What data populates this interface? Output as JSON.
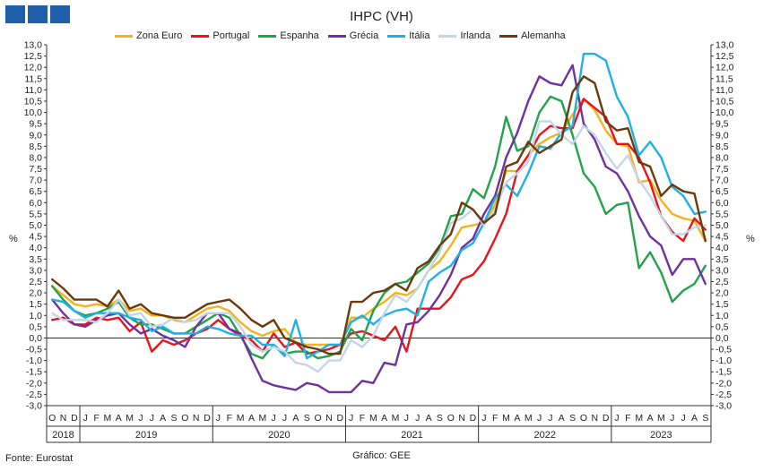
{
  "logo": {
    "color": "#1f5ea8",
    "blocks": 3
  },
  "footer": {
    "source": "Fonte: Eurostat",
    "credit": "Gráfico: GEE"
  },
  "chart_data": {
    "type": "line",
    "title": "IHPC (VH)",
    "ylabel_left": "%",
    "ylabel_right": "%",
    "ylim": [
      -3.0,
      13.0
    ],
    "ytick_step": 0.5,
    "grid": false,
    "legend_position": "top",
    "months": [
      "O",
      "N",
      "D",
      "J",
      "F",
      "M",
      "A",
      "M",
      "J",
      "J",
      "A",
      "S",
      "O",
      "N",
      "D",
      "J",
      "F",
      "M",
      "A",
      "M",
      "J",
      "J",
      "A",
      "S",
      "O",
      "N",
      "D",
      "J",
      "F",
      "M",
      "A",
      "M",
      "J",
      "J",
      "A",
      "S",
      "O",
      "N",
      "D",
      "J",
      "F",
      "M",
      "A",
      "M",
      "J",
      "J",
      "A",
      "S",
      "O",
      "N",
      "D",
      "J",
      "F",
      "M",
      "A",
      "M",
      "J",
      "J",
      "A",
      "S"
    ],
    "years": [
      {
        "label": "2018",
        "start": 0,
        "end": 2
      },
      {
        "label": "2019",
        "start": 3,
        "end": 14
      },
      {
        "label": "2020",
        "start": 15,
        "end": 26
      },
      {
        "label": "2021",
        "start": 27,
        "end": 38
      },
      {
        "label": "2022",
        "start": 39,
        "end": 50
      },
      {
        "label": "2023",
        "start": 51,
        "end": 59
      }
    ],
    "series": [
      {
        "name": "Zona Euro",
        "color": "#f2b31e",
        "values": [
          2.3,
          1.9,
          1.5,
          1.4,
          1.5,
          1.4,
          1.7,
          1.2,
          1.3,
          1.0,
          1.0,
          0.8,
          0.7,
          1.0,
          1.3,
          1.4,
          1.2,
          0.7,
          0.3,
          0.1,
          0.3,
          0.4,
          -0.2,
          -0.3,
          -0.3,
          -0.3,
          -0.3,
          0.9,
          0.9,
          1.3,
          1.6,
          2.0,
          1.9,
          2.2,
          3.0,
          3.4,
          4.1,
          4.9,
          5.0,
          5.1,
          5.9,
          7.4,
          7.4,
          8.1,
          8.6,
          8.9,
          9.1,
          9.9,
          10.6,
          10.1,
          9.2,
          8.6,
          8.5,
          6.9,
          7.0,
          6.1,
          5.5,
          5.3,
          5.2,
          4.3
        ]
      },
      {
        "name": "Portugal",
        "color": "#e8141b",
        "values": [
          0.8,
          0.9,
          0.6,
          0.6,
          0.9,
          0.8,
          0.9,
          0.3,
          0.7,
          -0.6,
          -0.1,
          -0.3,
          -0.1,
          0.2,
          0.4,
          0.8,
          0.4,
          0.1,
          -0.1,
          -0.6,
          0.2,
          -0.4,
          -0.2,
          -0.7,
          -0.6,
          -0.5,
          -0.3,
          0.2,
          0.3,
          0.1,
          -0.1,
          0.5,
          -0.6,
          1.3,
          1.3,
          1.3,
          1.8,
          2.6,
          2.8,
          3.4,
          4.4,
          5.5,
          7.4,
          8.1,
          9.0,
          9.4,
          9.3,
          9.3,
          10.6,
          10.2,
          9.8,
          8.6,
          8.6,
          8.0,
          6.9,
          5.4,
          4.7,
          4.3,
          5.3,
          4.8
        ]
      },
      {
        "name": "Espanha",
        "color": "#21a24b",
        "values": [
          2.3,
          1.7,
          1.2,
          1.0,
          1.1,
          1.3,
          1.6,
          0.9,
          0.6,
          0.6,
          0.4,
          0.2,
          0.2,
          0.5,
          0.8,
          1.1,
          0.9,
          0.1,
          -0.7,
          -0.9,
          -0.3,
          -0.7,
          -0.6,
          -0.6,
          -0.9,
          -0.8,
          -0.6,
          0.4,
          -0.1,
          1.2,
          2.0,
          2.4,
          2.5,
          2.9,
          3.3,
          4.0,
          5.4,
          5.5,
          6.6,
          6.2,
          7.6,
          9.8,
          8.3,
          8.5,
          10.0,
          10.7,
          10.5,
          9.0,
          7.3,
          6.7,
          5.5,
          5.9,
          6.0,
          3.1,
          3.8,
          2.9,
          1.6,
          2.1,
          2.4,
          3.2
        ]
      },
      {
        "name": "Grécia",
        "color": "#7030a0",
        "values": [
          1.7,
          1.1,
          0.6,
          0.5,
          0.8,
          1.0,
          1.1,
          0.6,
          0.2,
          0.4,
          0.1,
          -0.1,
          -0.4,
          0.5,
          1.1,
          1.1,
          0.4,
          0.2,
          -0.9,
          -1.9,
          -2.1,
          -2.2,
          -2.3,
          -2.0,
          -2.1,
          -2.4,
          -2.4,
          -2.4,
          -1.9,
          -2.0,
          -1.1,
          -1.2,
          0.6,
          0.7,
          1.2,
          1.9,
          2.8,
          4.0,
          4.4,
          5.5,
          6.3,
          8.0,
          9.1,
          10.5,
          11.6,
          11.3,
          11.2,
          12.1,
          9.5,
          8.8,
          7.6,
          7.3,
          6.5,
          5.4,
          4.5,
          4.1,
          2.8,
          3.5,
          3.5,
          2.4
        ]
      },
      {
        "name": "Itália",
        "color": "#1fb0e4",
        "values": [
          1.7,
          1.6,
          1.2,
          0.9,
          1.1,
          1.1,
          1.1,
          0.9,
          0.8,
          0.3,
          0.5,
          0.2,
          0.2,
          0.2,
          0.5,
          0.4,
          0.2,
          0.1,
          0.1,
          -0.3,
          -0.3,
          -0.8,
          0.8,
          -0.9,
          -0.6,
          -0.3,
          -0.3,
          0.7,
          1.0,
          0.6,
          1.0,
          1.2,
          1.3,
          1.0,
          2.5,
          2.9,
          3.2,
          3.9,
          4.2,
          5.1,
          6.2,
          6.8,
          6.3,
          7.3,
          8.5,
          8.4,
          9.1,
          9.4,
          12.6,
          12.6,
          12.3,
          10.7,
          9.8,
          8.1,
          8.7,
          8.0,
          6.7,
          6.3,
          5.5,
          5.6
        ]
      },
      {
        "name": "Irlanda",
        "color": "#c5d5e8",
        "values": [
          1.1,
          0.8,
          0.8,
          0.8,
          0.7,
          1.1,
          1.7,
          1.0,
          1.1,
          0.5,
          0.6,
          0.9,
          0.7,
          0.8,
          1.1,
          1.1,
          1.1,
          0.5,
          -0.3,
          -0.6,
          -0.4,
          -0.6,
          -1.1,
          -1.2,
          -1.5,
          -1.0,
          -1.0,
          -0.1,
          -0.4,
          0.1,
          1.1,
          1.9,
          1.6,
          2.2,
          3.0,
          3.8,
          5.1,
          5.3,
          5.7,
          5.0,
          5.7,
          6.9,
          7.3,
          7.8,
          9.6,
          9.6,
          9.0,
          8.6,
          9.4,
          9.0,
          8.2,
          7.5,
          8.1,
          7.0,
          6.3,
          5.4,
          4.6,
          4.6,
          4.9,
          5.0
        ]
      },
      {
        "name": "Alemanha",
        "color": "#6b3a0b",
        "values": [
          2.6,
          2.2,
          1.7,
          1.7,
          1.7,
          1.4,
          2.1,
          1.3,
          1.5,
          1.1,
          1.0,
          0.9,
          0.9,
          1.2,
          1.5,
          1.6,
          1.7,
          1.3,
          0.8,
          0.5,
          0.8,
          0.0,
          -0.2,
          -0.4,
          -0.5,
          -0.7,
          -0.7,
          1.6,
          1.6,
          2.0,
          2.1,
          2.4,
          2.1,
          3.1,
          3.4,
          4.1,
          4.6,
          6.0,
          5.7,
          5.1,
          5.5,
          7.6,
          7.8,
          8.7,
          8.2,
          8.5,
          8.8,
          10.9,
          11.6,
          11.3,
          9.6,
          9.2,
          9.3,
          7.8,
          7.6,
          6.3,
          6.8,
          6.5,
          6.4,
          4.3
        ]
      }
    ]
  }
}
